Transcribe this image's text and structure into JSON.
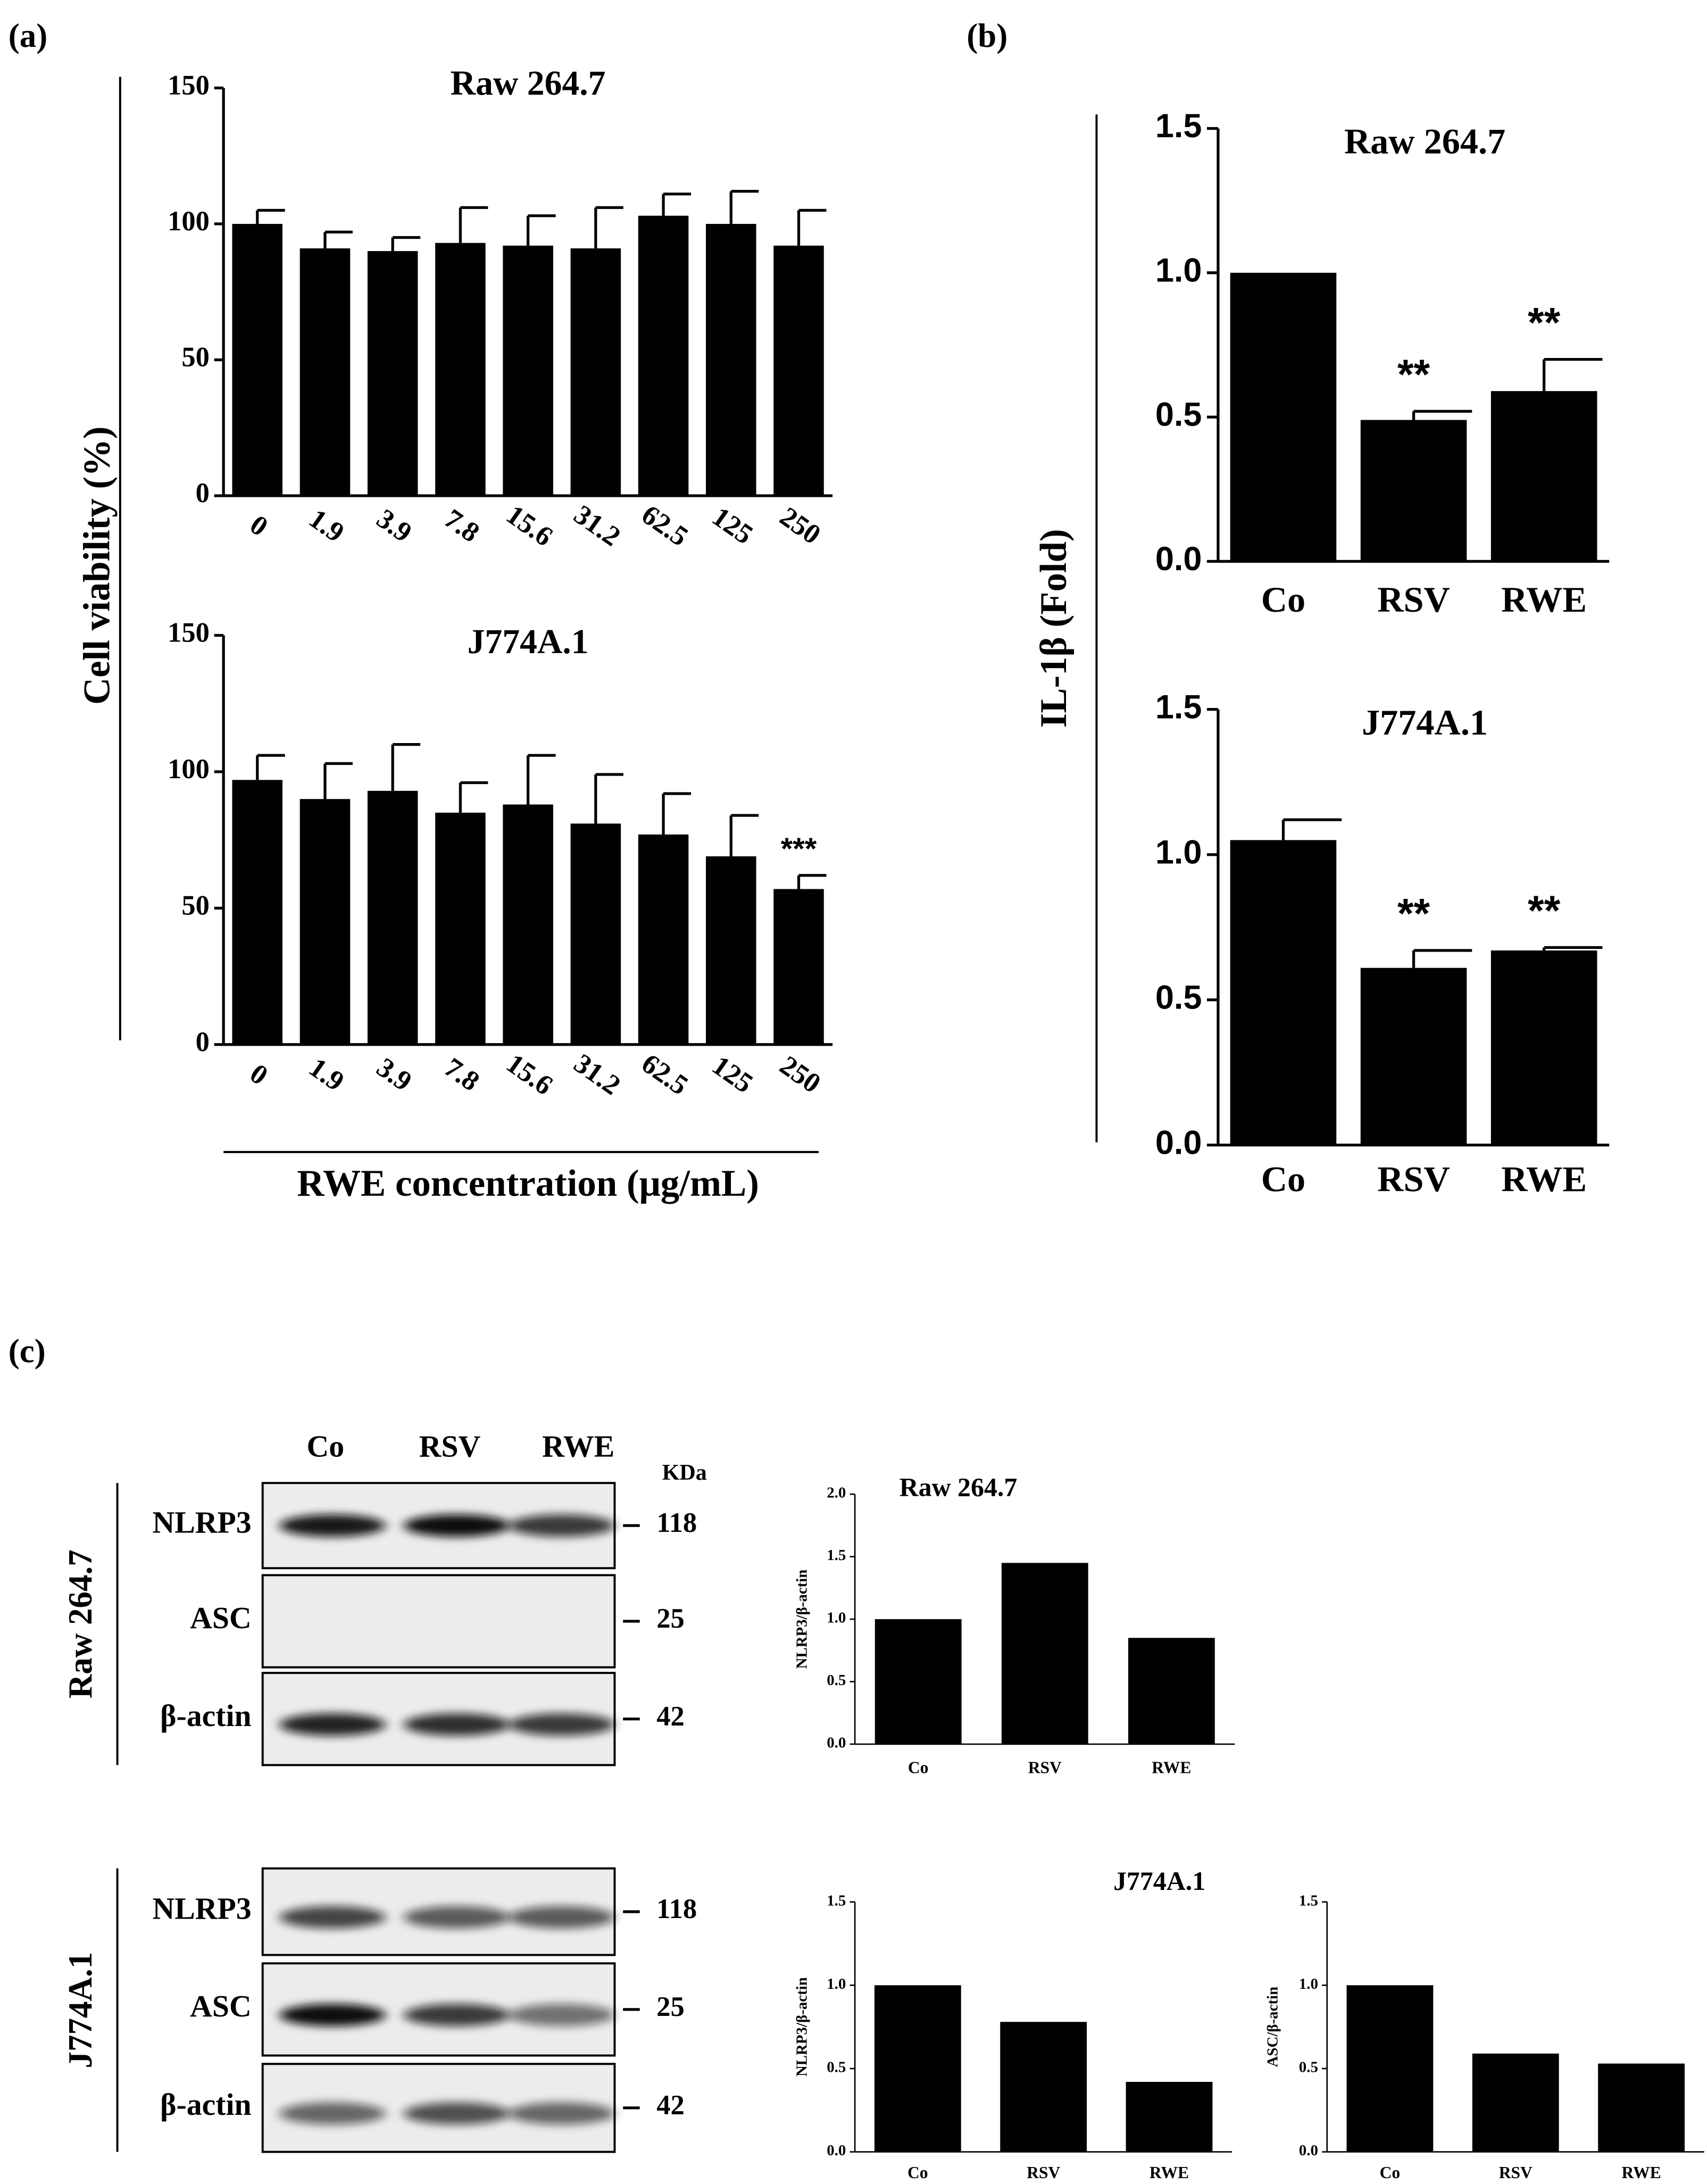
{
  "panel_labels": [
    "(a)",
    "(b)",
    "(c)"
  ],
  "shared_labels": {
    "cell_viability_ylabel": "Cell viability (%)",
    "concentration_xlabel": "RWE concentration (μg/mL)",
    "il1b_ylabel": "IL-1β (Fold)"
  },
  "chart_data": [
    {
      "type": "bar",
      "title": "Raw 264.7",
      "color": "#000000",
      "categories": [
        "0",
        "1.9",
        "3.9",
        "7.8",
        "15.6",
        "31.2",
        "62.5",
        "125",
        "250"
      ],
      "values": [
        100,
        91,
        90,
        93,
        92,
        91,
        103,
        100,
        92
      ],
      "errors": [
        5,
        6,
        5,
        13,
        11,
        15,
        8,
        12,
        13
      ],
      "ylim": [
        0,
        150
      ],
      "yticks": [
        0,
        50,
        100,
        150
      ]
    },
    {
      "type": "bar",
      "title": "J774A.1",
      "color": "#000000",
      "categories": [
        "0",
        "1.9",
        "3.9",
        "7.8",
        "15.6",
        "31.2",
        "62.5",
        "125",
        "250"
      ],
      "values": [
        97,
        90,
        93,
        85,
        88,
        81,
        77,
        69,
        57
      ],
      "errors": [
        9,
        13,
        17,
        11,
        18,
        18,
        15,
        15,
        5
      ],
      "significance": [
        null,
        null,
        null,
        null,
        null,
        null,
        null,
        null,
        "***"
      ],
      "ylim": [
        0,
        150
      ],
      "yticks": [
        0,
        50,
        100,
        150
      ]
    },
    {
      "type": "bar",
      "title": "Raw 264.7",
      "color": "#000000",
      "categories": [
        "Co",
        "RSV",
        "RWE"
      ],
      "values": [
        1.0,
        0.49,
        0.59
      ],
      "errors": [
        null,
        0.03,
        0.11
      ],
      "significance": [
        null,
        "**",
        "**"
      ],
      "ylim": [
        0,
        1.5
      ],
      "yticks": [
        {
          "value": 0,
          "label": "0.0"
        },
        {
          "value": 0.5,
          "label": "0.5"
        },
        {
          "value": 1,
          "label": "1.0"
        },
        {
          "value": 1.5,
          "label": "1.5"
        }
      ]
    },
    {
      "type": "bar",
      "title": "J774A.1",
      "color": "#000000",
      "categories": [
        "Co",
        "RSV",
        "RWE"
      ],
      "values": [
        1.05,
        0.61,
        0.67
      ],
      "errors": [
        0.07,
        0.06,
        0.01
      ],
      "significance": [
        null,
        "**",
        "**"
      ],
      "ylim": [
        0,
        1.5
      ],
      "yticks": [
        {
          "value": 0,
          "label": "0.0"
        },
        {
          "value": 0.5,
          "label": "0.5"
        },
        {
          "value": 1,
          "label": "1.0"
        },
        {
          "value": 1.5,
          "label": "1.5"
        }
      ]
    },
    {
      "type": "bar",
      "title": "Raw 264.7",
      "ylabel": "NLRP3/β-actin",
      "color": "#000000",
      "categories": [
        "Co",
        "RSV",
        "RWE"
      ],
      "values": [
        1.0,
        1.45,
        0.85
      ],
      "ylim": [
        0,
        2
      ],
      "yticks": [
        {
          "value": 0,
          "label": "0.0"
        },
        {
          "value": 0.5,
          "label": "0.5"
        },
        {
          "value": 1,
          "label": "1.0"
        },
        {
          "value": 1.5,
          "label": "1.5"
        },
        {
          "value": 2,
          "label": "2.0"
        }
      ]
    },
    {
      "type": "bar",
      "title": "J774A.1",
      "ylabel": "NLRP3/β-actin",
      "color": "#000000",
      "categories": [
        "Co",
        "RSV",
        "RWE"
      ],
      "values": [
        1.0,
        0.78,
        0.42
      ],
      "ylim": [
        0,
        1.5
      ],
      "yticks": [
        {
          "value": 0,
          "label": "0.0"
        },
        {
          "value": 0.5,
          "label": "0.5"
        },
        {
          "value": 1,
          "label": "1.0"
        },
        {
          "value": 1.5,
          "label": "1.5"
        }
      ]
    },
    {
      "type": "bar",
      "ylabel": "ASC/β-actin",
      "color": "#000000",
      "categories": [
        "Co",
        "RSV",
        "RWE"
      ],
      "values": [
        1.0,
        0.59,
        0.53
      ],
      "ylim": [
        0,
        1.5
      ],
      "yticks": [
        {
          "value": 0,
          "label": "0.0"
        },
        {
          "value": 0.5,
          "label": "0.5"
        },
        {
          "value": 1,
          "label": "1.0"
        },
        {
          "value": 1.5,
          "label": "1.5"
        }
      ]
    }
  ],
  "blots": {
    "lanes": [
      "Co",
      "RSV",
      "RWE"
    ],
    "kda_label": "KDa",
    "groups": [
      {
        "cell_line": "Raw 264.7",
        "rows": [
          {
            "protein": "NLRP3",
            "kda": "118"
          },
          {
            "protein": "ASC",
            "kda": "25"
          },
          {
            "protein": "β-actin",
            "kda": "42"
          }
        ]
      },
      {
        "cell_line": "J774A.1",
        "rows": [
          {
            "protein": "NLRP3",
            "kda": "118"
          },
          {
            "protein": "ASC",
            "kda": "25"
          },
          {
            "protein": "β-actin",
            "kda": "42"
          }
        ]
      }
    ]
  }
}
